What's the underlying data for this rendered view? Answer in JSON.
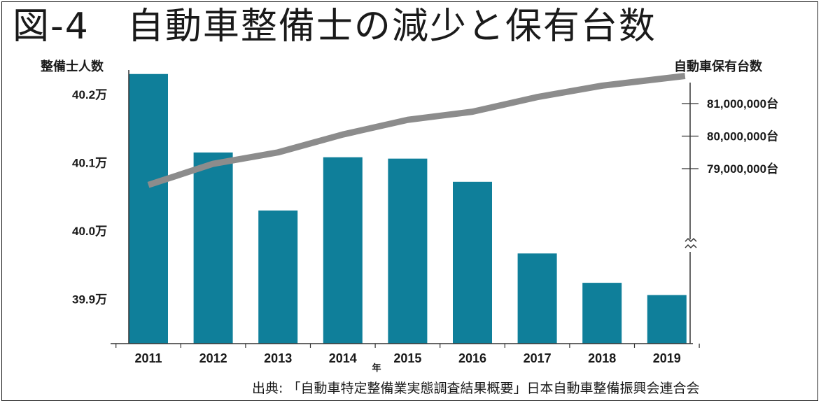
{
  "title": "図-4　自動車整備士の減少と保有台数",
  "source": "出典: 「自動車特定整備業実態調査結果概要」日本自動車整備振興会連合会",
  "colors": {
    "bar": "#0f7f9a",
    "line": "#8c8c8c",
    "axis": "#333333"
  },
  "chart_data": {
    "type": "bar",
    "categories": [
      "2011",
      "2012",
      "2013",
      "2014",
      "2015",
      "2016",
      "2017",
      "2018",
      "2019"
    ],
    "xlabel": "年",
    "series": [
      {
        "name": "整備士人数",
        "axis": "left",
        "type": "bar",
        "values": [
          402300,
          401150,
          400300,
          401080,
          401060,
          400720,
          399670,
          399240,
          399060
        ]
      },
      {
        "name": "自動車保有台数",
        "axis": "right",
        "type": "line",
        "values": [
          78500000,
          79150000,
          79500000,
          80050000,
          80500000,
          80750000,
          81200000,
          81550000,
          81850000
        ]
      }
    ],
    "left_axis": {
      "title": "整備士人数",
      "ticks": [
        {
          "value": 402000,
          "label": "40.2万"
        },
        {
          "value": 401000,
          "label": "40.1万"
        },
        {
          "value": 400000,
          "label": "40.0万"
        },
        {
          "value": 399000,
          "label": "39.9万"
        }
      ]
    },
    "right_axis": {
      "title": "自動車保有台数",
      "broken": true,
      "ticks": [
        {
          "value": 81000000,
          "label": "81,000,000台"
        },
        {
          "value": 80000000,
          "label": "80,000,000台"
        },
        {
          "value": 79000000,
          "label": "79,000,000台"
        }
      ]
    }
  }
}
